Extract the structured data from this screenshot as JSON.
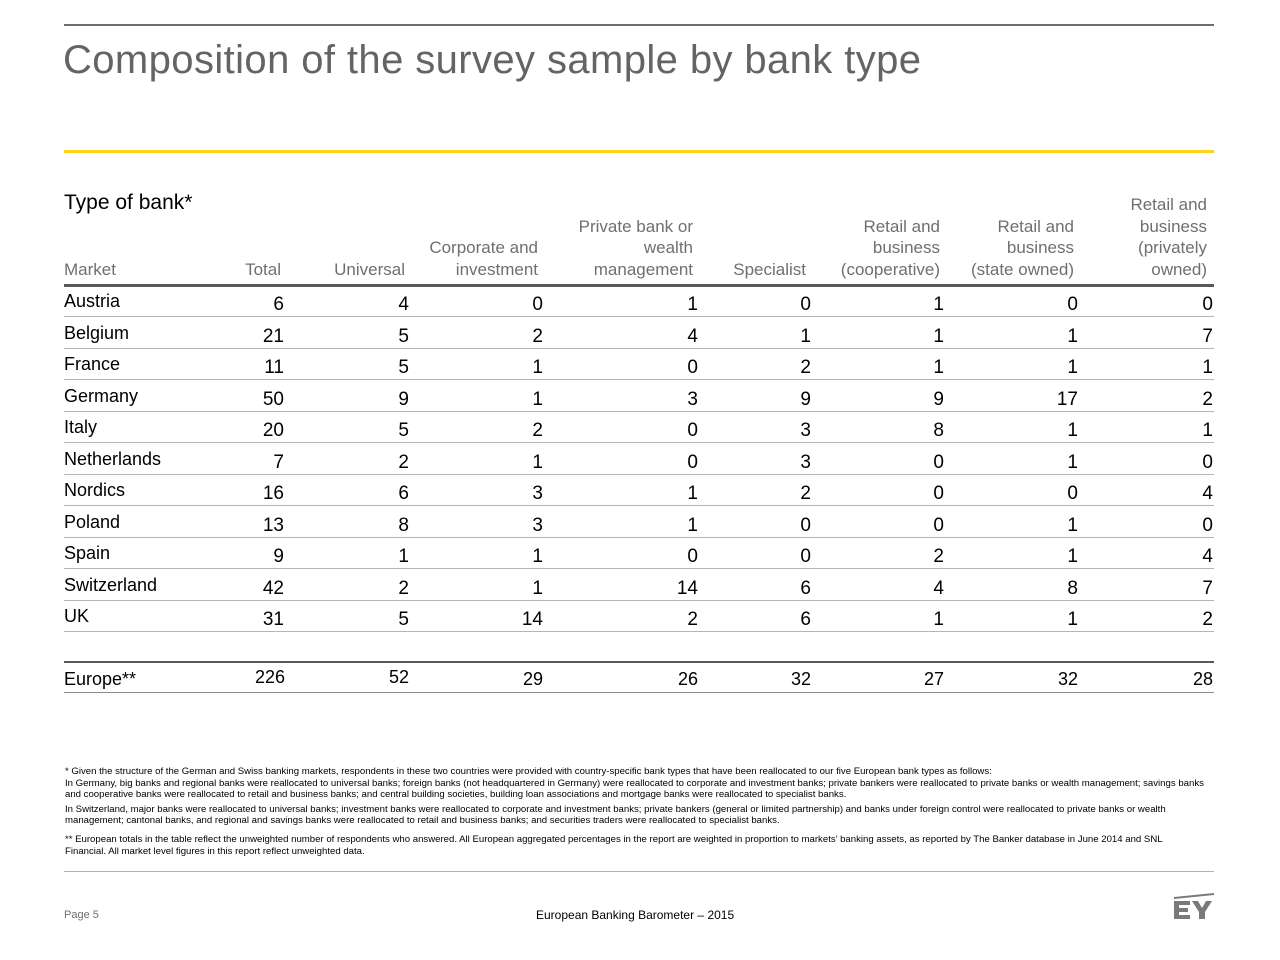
{
  "title": "Composition of the survey sample by bank type",
  "type_label": "Type of bank*",
  "columns": [
    "Market",
    "Total",
    "Universal",
    "Corporate and\ninvestment",
    "Private bank or\nwealth\nmanagement",
    "Specialist",
    "Retail and\nbusiness\n(cooperative)",
    "Retail and\nbusiness\n(state owned)",
    "Retail and\nbusiness\n(privately\nowned)"
  ],
  "rows": [
    {
      "market": "Austria",
      "values": [
        "6",
        "4",
        "0",
        "1",
        "0",
        "1",
        "0",
        "0"
      ]
    },
    {
      "market": "Belgium",
      "values": [
        "21",
        "5",
        "2",
        "4",
        "1",
        "1",
        "1",
        "7"
      ]
    },
    {
      "market": "France",
      "values": [
        "11",
        "5",
        "1",
        "0",
        "2",
        "1",
        "1",
        "1"
      ]
    },
    {
      "market": "Germany",
      "values": [
        "50",
        "9",
        "1",
        "3",
        "9",
        "9",
        "17",
        "2"
      ]
    },
    {
      "market": "Italy",
      "values": [
        "20",
        "5",
        "2",
        "0",
        "3",
        "8",
        "1",
        "1"
      ]
    },
    {
      "market": "Netherlands",
      "values": [
        "7",
        "2",
        "1",
        "0",
        "3",
        "0",
        "1",
        "0"
      ]
    },
    {
      "market": "Nordics",
      "values": [
        "16",
        "6",
        "3",
        "1",
        "2",
        "0",
        "0",
        "4"
      ]
    },
    {
      "market": "Poland",
      "values": [
        "13",
        "8",
        "3",
        "1",
        "0",
        "0",
        "1",
        "0"
      ]
    },
    {
      "market": "Spain",
      "values": [
        "9",
        "1",
        "1",
        "0",
        "0",
        "2",
        "1",
        "4"
      ]
    },
    {
      "market": "Switzerland",
      "values": [
        "42",
        "2",
        "1",
        "14",
        "6",
        "4",
        "8",
        "7"
      ]
    },
    {
      "market": "UK",
      "values": [
        "31",
        "5",
        "14",
        "2",
        "6",
        "1",
        "1",
        "2"
      ]
    }
  ],
  "europe": {
    "label": "Europe**",
    "values": [
      "226",
      "52",
      "29",
      "26",
      "32",
      "27",
      "32",
      "28"
    ]
  },
  "footnotes": {
    "p1": "* Given the structure of the German and Swiss banking markets, respondents in these two countries were provided with country-specific bank types that have been reallocated to our five European bank types as follows:\nIn Germany, big banks and regional banks were reallocated to universal banks; foreign banks (not headquartered in Germany) were reallocated to corporate and investment banks; private bankers were reallocated to private banks or wealth management; savings banks and cooperative banks were reallocated to retail and business banks; and central building societies, building loan associations and mortgage banks were reallocated to specialist banks.",
    "p2": "In Switzerland, major banks were reallocated to universal banks; investment banks were reallocated to corporate and investment banks; private bankers (general or limited partnership) and banks under foreign control were reallocated to private banks or wealth management; cantonal banks, and regional and savings banks were reallocated to retail and business banks; and securities traders were reallocated to specialist banks.",
    "p3": "** European totals in the table reflect the unweighted number of respondents who answered. All European aggregated percentages in the report are weighted in proportion to markets’ banking assets, as reported by The Banker database in June 2014 and SNL Financial. All market level figures in this report reflect unweighted data."
  },
  "footer": {
    "page": "Page 5",
    "report_title": "European Banking Barometer – 2015",
    "logo_text": "EY"
  }
}
